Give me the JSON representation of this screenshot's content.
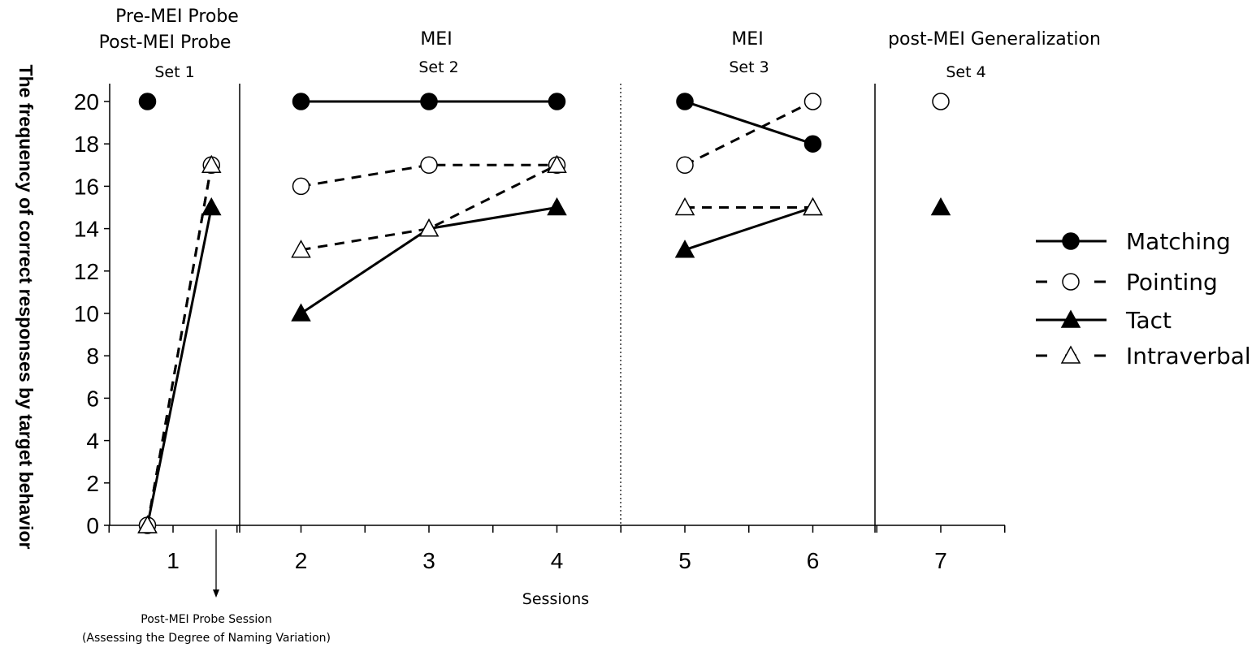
{
  "chart_data": {
    "type": "line",
    "xlabel": "Sessions",
    "ylabel": "The frequency of correct responses by target behavior",
    "ylim": [
      0,
      20
    ],
    "y_ticks": [
      0,
      2,
      4,
      6,
      8,
      10,
      12,
      14,
      16,
      18,
      20
    ],
    "x_ticks": [
      1,
      2,
      3,
      4,
      5,
      6,
      7
    ],
    "grid": false,
    "legend_position": "right",
    "phases": [
      {
        "line1": "Pre-MEI Probe",
        "line2": "Post-MEI Probe",
        "line3": "Set 1"
      },
      {
        "line1": "MEI",
        "line2": "Set 2"
      },
      {
        "line1": "MEI",
        "line2": "Set 3"
      },
      {
        "line1": "post-MEI Generalization",
        "line2": "Set 4"
      }
    ],
    "series": [
      {
        "name": "Matching",
        "marker": "filled-circle",
        "line": "solid",
        "points": [
          [
            0.8,
            20
          ],
          [
            2,
            20
          ],
          [
            3,
            20
          ],
          [
            4,
            20
          ],
          [
            5,
            20
          ],
          [
            6,
            18
          ]
        ],
        "segments": [
          [
            1,
            2,
            3
          ],
          [
            4,
            5
          ]
        ]
      },
      {
        "name": "Pointing",
        "marker": "open-circle",
        "line": "dashed",
        "points": [
          [
            0.8,
            0
          ],
          [
            1.3,
            17
          ],
          [
            2,
            16
          ],
          [
            3,
            17
          ],
          [
            4,
            17
          ],
          [
            5,
            17
          ],
          [
            6,
            20
          ],
          [
            7,
            20
          ]
        ],
        "segments": [
          [
            0,
            1
          ],
          [
            2,
            3,
            4
          ],
          [
            5,
            6
          ]
        ]
      },
      {
        "name": "Tact",
        "marker": "filled-triangle",
        "line": "solid",
        "points": [
          [
            0.8,
            0
          ],
          [
            1.3,
            15
          ],
          [
            2,
            10
          ],
          [
            3,
            14
          ],
          [
            4,
            15
          ],
          [
            5,
            13
          ],
          [
            6,
            15
          ],
          [
            7,
            15
          ]
        ],
        "segments": [
          [
            0,
            1
          ],
          [
            2,
            3,
            4
          ],
          [
            5,
            6
          ]
        ]
      },
      {
        "name": "Intraverbal",
        "marker": "open-triangle",
        "line": "dashed",
        "points": [
          [
            0.8,
            0
          ],
          [
            1.3,
            17
          ],
          [
            2,
            13
          ],
          [
            3,
            14
          ],
          [
            4,
            17
          ],
          [
            5,
            15
          ],
          [
            6,
            15
          ]
        ],
        "segments": [
          [
            0,
            1
          ],
          [
            2,
            3,
            4
          ],
          [
            5,
            6
          ]
        ]
      }
    ],
    "annotation": {
      "line1": "Post-MEI Probe Session",
      "line2": "(Assessing the Degree of Naming Variation)"
    }
  }
}
